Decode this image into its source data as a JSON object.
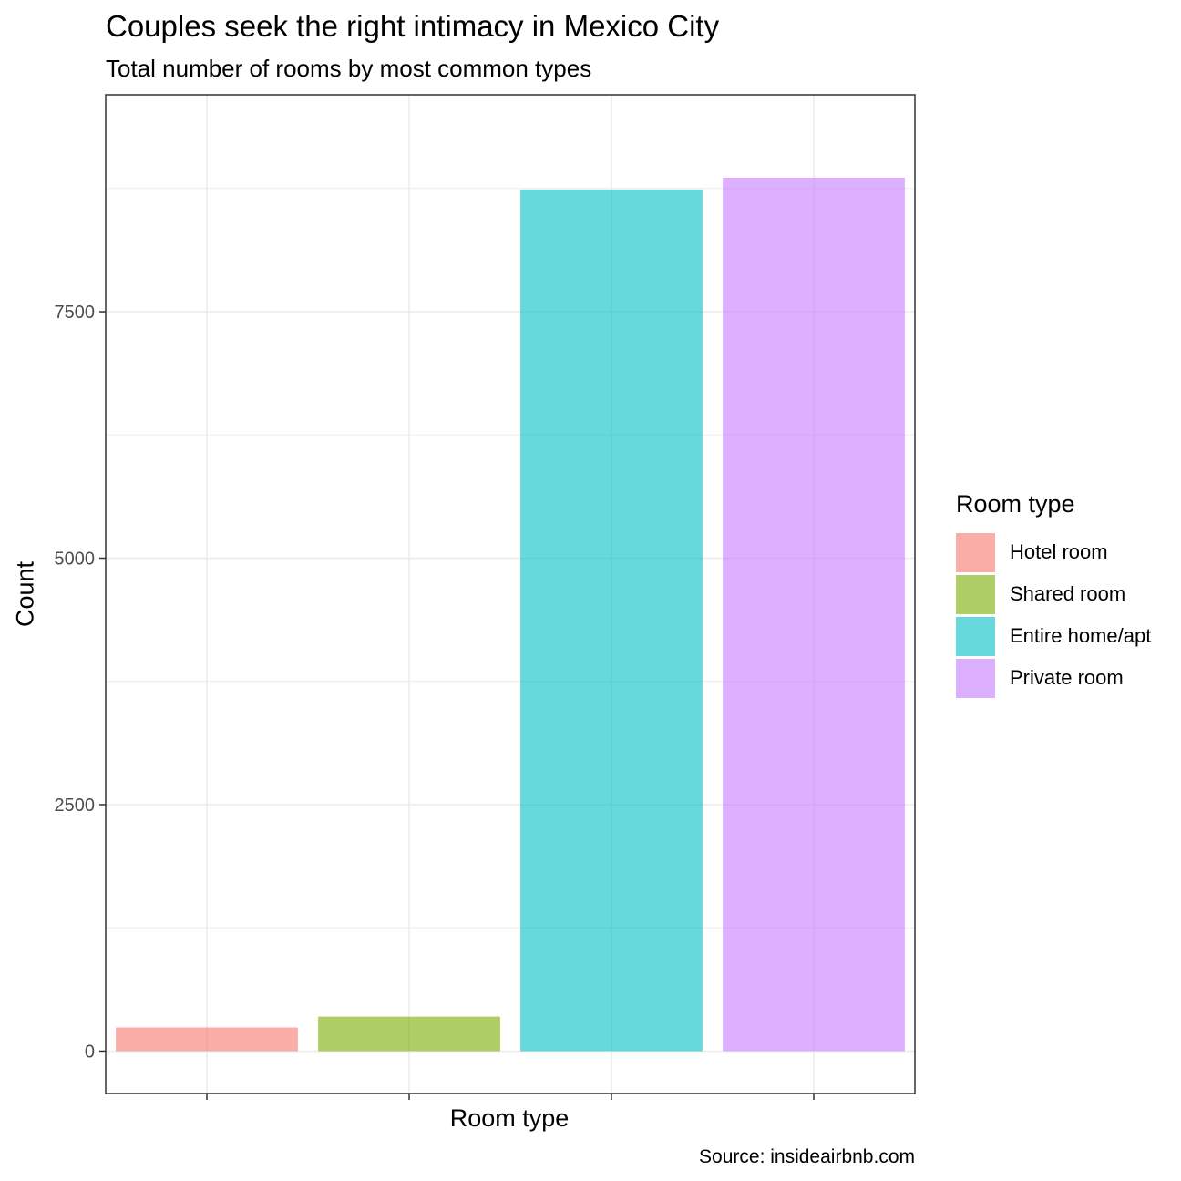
{
  "chart_data": {
    "type": "bar",
    "title": "Couples seek the right intimacy in Mexico City",
    "subtitle": "Total number of rooms by most common types",
    "xlabel": "Room type",
    "ylabel": "Count",
    "caption": "Source: insideairbnb.com",
    "categories": [
      "Hotel room",
      "Shared room",
      "Entire home/apt",
      "Private room"
    ],
    "values": [
      240,
      350,
      8740,
      8860
    ],
    "colors": [
      "#f8766d",
      "#7cae00",
      "#00bfc4",
      "#c77cff"
    ],
    "bar_opacity": 0.6,
    "ylim": [
      -430,
      9700
    ],
    "yticks": [
      0,
      2500,
      5000,
      7500
    ],
    "ytick_labels": [
      "0",
      "2500",
      "5000",
      "7500"
    ],
    "grid": true,
    "legend": {
      "title": "Room type",
      "position": "right",
      "entries": [
        "Hotel room",
        "Shared room",
        "Entire home/apt",
        "Private room"
      ]
    }
  }
}
